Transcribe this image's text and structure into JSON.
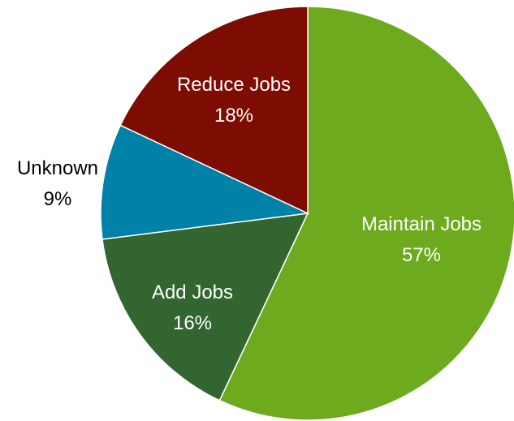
{
  "chart_data": {
    "type": "pie",
    "title": "",
    "slices": [
      {
        "label": "Maintain Jobs",
        "value": 57,
        "value_label": "57%",
        "color": "#6eaa1e",
        "label_color": "#ffffff"
      },
      {
        "label": "Add Jobs",
        "value": 16,
        "value_label": "16%",
        "color": "#336531",
        "label_color": "#ffffff"
      },
      {
        "label": "Unknown",
        "value": 9,
        "value_label": "9%",
        "color": "#0081a8",
        "label_color": "#000000"
      },
      {
        "label": "Reduce Jobs",
        "value": 18,
        "value_label": "18%",
        "color": "#7d0c02",
        "label_color": "#ffffff"
      }
    ]
  }
}
